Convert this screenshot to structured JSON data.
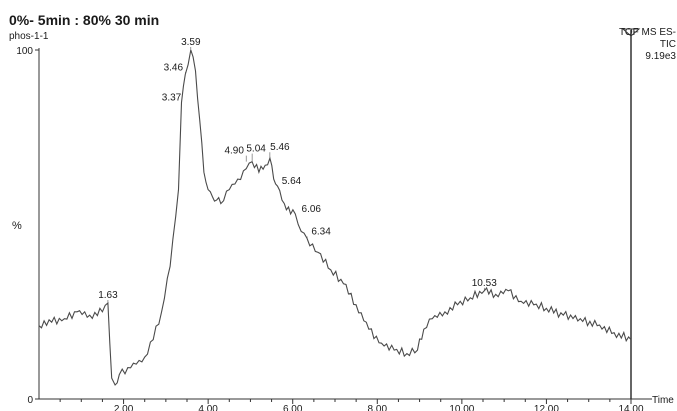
{
  "chart_data": {
    "type": "line",
    "title": "0%- 5min : 80% 30 min",
    "sample_name": "phos-1-1",
    "instrument": {
      "line1": "TOF MS ES-",
      "line2": "TIC",
      "line3": "9.19e3"
    },
    "xlabel": "Time",
    "ylabel": "%",
    "xlim": [
      0,
      14
    ],
    "ylim": [
      0,
      100
    ],
    "x_ticks": [
      {
        "value": 2,
        "label": "2.00"
      },
      {
        "value": 4,
        "label": "4.00"
      },
      {
        "value": 6,
        "label": "6.00"
      },
      {
        "value": 8,
        "label": "8.00"
      },
      {
        "value": 10,
        "label": "10.00"
      },
      {
        "value": 12,
        "label": "12.00"
      },
      {
        "value": 14,
        "label": "14.00"
      }
    ],
    "y_ticks": [
      {
        "value": 0,
        "label": "0"
      },
      {
        "value": 100,
        "label": "100"
      }
    ],
    "peak_labels": [
      {
        "x": 1.63,
        "y": 27.5,
        "label": "1.63"
      },
      {
        "x": 3.37,
        "y": 85,
        "label": "3.37"
      },
      {
        "x": 3.46,
        "y": 93,
        "label": "3.46"
      },
      {
        "x": 3.59,
        "y": 100,
        "label": "3.59"
      },
      {
        "x": 4.9,
        "y": 68,
        "label": "4.90"
      },
      {
        "x": 5.04,
        "y": 68,
        "label": "5.04"
      },
      {
        "x": 5.46,
        "y": 69,
        "label": "5.46"
      },
      {
        "x": 5.64,
        "y": 61,
        "label": "5.64"
      },
      {
        "x": 6.06,
        "y": 53,
        "label": "6.06"
      },
      {
        "x": 6.34,
        "y": 46,
        "label": "6.34"
      },
      {
        "x": 10.53,
        "y": 31,
        "label": "10.53"
      }
    ],
    "series": [
      {
        "x": [
          0.0,
          0.3,
          0.6,
          0.9,
          1.2,
          1.5,
          1.63,
          1.72,
          1.8,
          1.9,
          2.1,
          2.3,
          2.5,
          2.7,
          2.9,
          3.1,
          3.3,
          3.37,
          3.46,
          3.59,
          3.7,
          3.8,
          3.9,
          4.0,
          4.1,
          4.2,
          4.3,
          4.5,
          4.7,
          4.9,
          5.04,
          5.2,
          5.35,
          5.46,
          5.55,
          5.64,
          5.8,
          5.95,
          6.06,
          6.2,
          6.34,
          6.6,
          6.9,
          7.2,
          7.5,
          7.8,
          8.1,
          8.4,
          8.7,
          8.95,
          9.1,
          9.3,
          9.6,
          9.9,
          10.2,
          10.53,
          10.8,
          11.1,
          11.4,
          11.7,
          12.0,
          12.4,
          12.8,
          13.2,
          13.6,
          14.0
        ],
        "y": [
          21,
          22,
          23,
          25,
          24,
          25,
          27.5,
          6,
          4,
          7,
          9,
          10,
          12,
          17,
          25,
          38,
          60,
          85,
          93,
          100,
          94,
          80,
          65,
          60,
          58,
          57,
          56,
          60,
          63,
          66,
          68,
          65,
          67,
          69,
          63,
          61,
          56,
          53,
          53,
          48,
          46,
          42,
          37,
          33,
          27,
          20,
          16,
          14,
          13,
          14,
          20,
          23,
          25,
          27,
          29,
          31,
          30,
          31,
          28,
          27,
          26,
          24,
          23,
          21,
          19,
          17
        ]
      }
    ]
  }
}
